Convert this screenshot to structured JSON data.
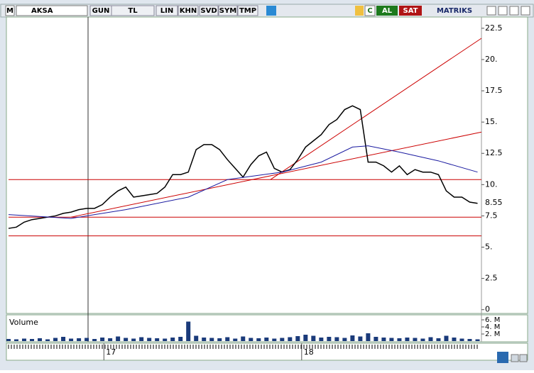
{
  "toolbar": {
    "logo": "M",
    "symbol": "AKSA",
    "buttons": [
      "GUN",
      "TL",
      "LIN",
      "KHN",
      "SVD",
      "SYM",
      "TMP"
    ],
    "refresh": "C",
    "buy": "AL",
    "sell": "SAT",
    "brand": "MATRIKS"
  },
  "chart_data": {
    "type": "line",
    "series": [
      {
        "name": "AKSA",
        "color": "#000000",
        "values": [
          6.5,
          6.6,
          7.0,
          7.2,
          7.3,
          7.4,
          7.5,
          7.7,
          7.8,
          8.0,
          8.1,
          8.1,
          8.4,
          9.0,
          9.5,
          9.8,
          9.0,
          9.1,
          9.2,
          9.3,
          9.8,
          10.8,
          10.8,
          11.0,
          12.8,
          13.2,
          13.2,
          12.8,
          12.0,
          11.3,
          10.6,
          11.6,
          12.3,
          12.6,
          11.3,
          11.0,
          11.2,
          12.0,
          13.0,
          13.5,
          14.0,
          14.8,
          15.2,
          16.0,
          16.3,
          16.0,
          11.8,
          11.8,
          11.5,
          11.0,
          11.5,
          10.8,
          11.2,
          11.0,
          11.0,
          10.8,
          9.5,
          9.0,
          9.0,
          8.6,
          8.5
        ]
      },
      {
        "name": "MA",
        "color": "#1a1aa0",
        "x": [
          0,
          8,
          15,
          23,
          28,
          35,
          40,
          44,
          46,
          50,
          55,
          60
        ],
        "values": [
          7.6,
          7.3,
          8.0,
          9.0,
          10.4,
          11.0,
          11.8,
          13.0,
          13.1,
          12.6,
          11.9,
          11.0
        ]
      }
    ],
    "horizontal_lines": {
      "color": "#cc0000",
      "values": [
        10.4,
        7.4,
        5.9
      ]
    },
    "trend_lines": {
      "color": "#cc0000",
      "lines": [
        {
          "from": [
            8,
            7.4
          ],
          "to": [
            60.5,
            14.2
          ]
        },
        {
          "from": [
            33.5,
            10.4
          ],
          "to": [
            60.5,
            21.7
          ]
        }
      ]
    },
    "last_value": {
      "value": 8.55,
      "label": "8.55"
    },
    "ylim": [
      -0.3,
      23.4
    ],
    "yticks": [
      0,
      2.5,
      {
        "value": 5,
        "label": "5."
      },
      7.5,
      {
        "value": 10,
        "label": "10."
      },
      12.5,
      {
        "value": 15,
        "label": "15."
      },
      17.5,
      {
        "value": 20,
        "label": "20."
      },
      22.5
    ],
    "xlim": [
      0,
      60.5
    ],
    "xticks": [
      {
        "value": 12.2,
        "label": "17"
      },
      {
        "value": 37.5,
        "label": "18"
      }
    ],
    "volume": {
      "label": "Volume",
      "color": "#1a3a7a",
      "values": [
        600000,
        500000,
        700000,
        600000,
        800000,
        500000,
        900000,
        1200000,
        700000,
        800000,
        900000,
        600000,
        1000000,
        800000,
        1300000,
        900000,
        700000,
        1100000,
        900000,
        800000,
        700000,
        1000000,
        1200000,
        5500000,
        1500000,
        1000000,
        900000,
        800000,
        1100000,
        700000,
        1300000,
        900000,
        800000,
        1000000,
        700000,
        900000,
        1100000,
        1400000,
        1800000,
        1500000,
        1000000,
        1200000,
        1100000,
        900000,
        1600000,
        1300000,
        2200000,
        1200000,
        1000000,
        900000,
        800000,
        1000000,
        900000,
        700000,
        1100000,
        800000,
        1500000,
        1000000,
        700000,
        600000,
        500000
      ],
      "ylim": [
        0,
        7000000
      ],
      "yticks": [
        {
          "value": 6000000,
          "label": "6. M"
        },
        {
          "value": 4000000,
          "label": "4. M"
        },
        {
          "value": 2000000,
          "label": "2. M"
        }
      ]
    }
  }
}
